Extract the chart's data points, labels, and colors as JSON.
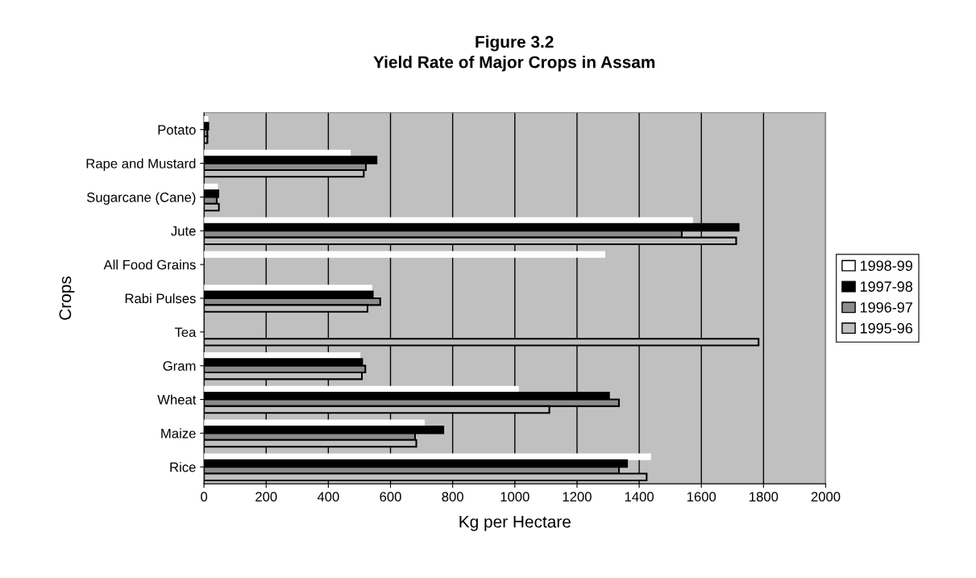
{
  "chart_data": {
    "type": "bar",
    "orientation": "horizontal",
    "title": "Figure 3.2",
    "subtitle": "Yield Rate of Major Crops in Assam",
    "xlabel": "Kg per Hectare",
    "ylabel": "Crops",
    "categories": [
      "Potato",
      "Rape and Mustard",
      "Sugarcane (Cane)",
      "Jute",
      "All Food Grains",
      "Rabi Pulses",
      "Tea",
      "Gram",
      "Wheat",
      "Maize",
      "Rice"
    ],
    "series": [
      {
        "name": "1998-99",
        "color": "#ffffff",
        "values": [
          14,
          472,
          45,
          1573,
          1291,
          541,
          null,
          503,
          1013,
          710,
          1438
        ]
      },
      {
        "name": "1997-98",
        "color": "#000000",
        "values": [
          14,
          555,
          46,
          1720,
          null,
          543,
          null,
          509,
          1303,
          770,
          1361
        ]
      },
      {
        "name": "1996-97",
        "color": "#8c8c8c",
        "values": [
          11,
          521,
          41,
          1537,
          null,
          567,
          null,
          519,
          1335,
          679,
          1335
        ]
      },
      {
        "name": "1995-96",
        "color": "#c0c0c0",
        "values": [
          11,
          514,
          48,
          1712,
          null,
          526,
          1784,
          508,
          1111,
          683,
          1424
        ]
      }
    ],
    "xlim": [
      0,
      2000
    ],
    "xticks": [
      0,
      200,
      400,
      600,
      800,
      1000,
      1200,
      1400,
      1600,
      1800,
      2000
    ],
    "grid": "x",
    "legend": "right"
  }
}
